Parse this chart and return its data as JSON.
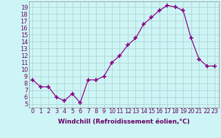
{
  "x": [
    0,
    1,
    2,
    3,
    4,
    5,
    6,
    7,
    8,
    9,
    10,
    11,
    12,
    13,
    14,
    15,
    16,
    17,
    18,
    19,
    20,
    21,
    22,
    23
  ],
  "y": [
    8.5,
    7.5,
    7.5,
    6.0,
    5.5,
    6.5,
    5.2,
    8.5,
    8.5,
    9.0,
    11.0,
    12.0,
    13.5,
    14.5,
    16.5,
    17.5,
    18.5,
    19.2,
    19.0,
    18.5,
    14.5,
    11.5,
    10.5,
    10.5
  ],
  "line_color": "#880088",
  "marker": "+",
  "marker_size": 4,
  "marker_lw": 1.2,
  "bg_color": "#cef5f5",
  "grid_color": "#aacccc",
  "xlabel": "Windchill (Refroidissement éolien,°C)",
  "ylabel_ticks": [
    5,
    6,
    7,
    8,
    9,
    10,
    11,
    12,
    13,
    14,
    15,
    16,
    17,
    18,
    19
  ],
  "xlim": [
    -0.5,
    23.5
  ],
  "ylim": [
    4.5,
    19.8
  ],
  "xlabel_fontsize": 6.5,
  "tick_fontsize": 6.0,
  "label_color": "#660066"
}
